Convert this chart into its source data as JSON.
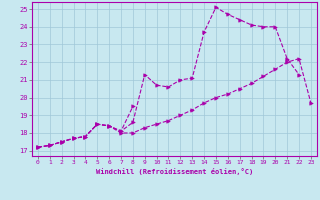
{
  "background_color": "#c8e8f0",
  "grid_color": "#a0c8d8",
  "line_color": "#aa00aa",
  "xlabel": "Windchill (Refroidissement éolien,°C)",
  "xlim_min": -0.5,
  "xlim_max": 23.5,
  "ylim_min": 16.7,
  "ylim_max": 25.4,
  "xticks": [
    0,
    1,
    2,
    3,
    4,
    5,
    6,
    7,
    8,
    9,
    10,
    11,
    12,
    13,
    14,
    15,
    16,
    17,
    18,
    19,
    20,
    21,
    22,
    23
  ],
  "yticks": [
    17,
    18,
    19,
    20,
    21,
    22,
    23,
    24,
    25
  ],
  "line1_x": [
    0,
    1,
    2,
    3,
    4,
    5,
    6,
    7,
    8,
    9,
    10,
    11,
    12,
    13,
    14,
    15,
    16,
    17,
    18,
    19,
    20,
    21,
    22,
    23
  ],
  "line1_y": [
    17.2,
    17.3,
    17.5,
    17.7,
    17.8,
    18.5,
    18.4,
    18.0,
    18.0,
    18.3,
    18.5,
    18.7,
    19.0,
    19.3,
    19.7,
    20.0,
    20.2,
    20.5,
    20.8,
    21.2,
    21.6,
    22.0,
    22.2,
    19.7
  ],
  "line2_x": [
    0,
    1,
    2,
    3,
    4,
    5,
    6,
    7,
    8,
    9,
    10,
    11,
    12,
    13,
    14,
    15,
    16,
    17,
    18,
    19,
    20,
    21,
    22
  ],
  "line2_y": [
    17.2,
    17.3,
    17.5,
    17.7,
    17.8,
    18.5,
    18.4,
    18.1,
    18.6,
    21.3,
    20.7,
    20.6,
    21.0,
    21.1,
    23.7,
    25.1,
    24.7,
    24.4,
    24.1,
    24.0,
    24.0,
    22.2,
    21.3
  ],
  "line3_x": [
    0,
    1,
    2,
    3,
    4,
    5,
    6,
    7,
    8
  ],
  "line3_y": [
    17.2,
    17.3,
    17.5,
    17.7,
    17.8,
    18.5,
    18.4,
    18.1,
    19.5
  ]
}
